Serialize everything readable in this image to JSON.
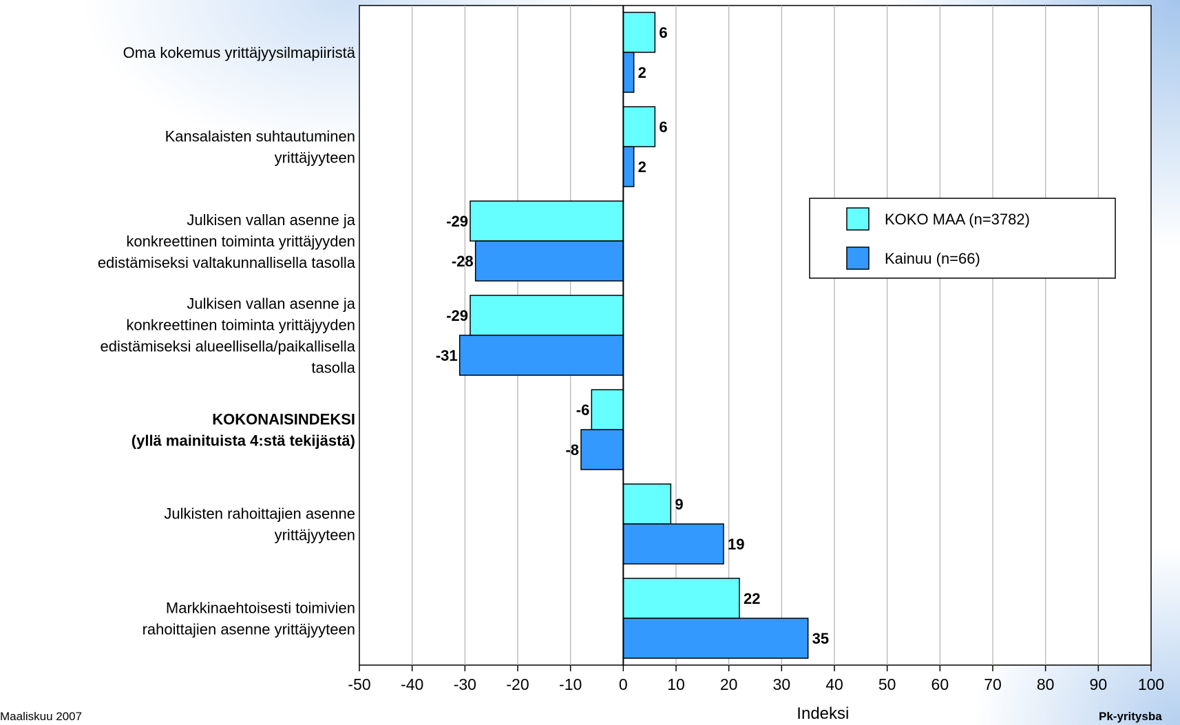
{
  "chart_data": {
    "type": "bar",
    "orientation": "horizontal",
    "categories": [
      [
        "Oma kokemus yrittäjyysilmapiiristä"
      ],
      [
        "Kansalaisten suhtautuminen",
        "yrittäjyyteen"
      ],
      [
        "Julkisen vallan asenne ja",
        "konkreettinen toiminta yrittäjyyden",
        "edistämiseksi valtakunnallisella tasolla"
      ],
      [
        "Julkisen vallan asenne ja",
        "konkreettinen toiminta yrittäjyyden",
        "edistämiseksi alueellisella/paikallisella",
        "tasolla"
      ],
      [
        "KOKONAISINDEKSI",
        "(yllä mainituista 4:stä tekijästä)"
      ],
      [
        "Julkisten rahoittajien asenne",
        "yrittäjyyteen"
      ],
      [
        "Markkinaehtoisesti toimivien",
        "rahoittajien asenne yrittäjyyteen"
      ]
    ],
    "bold_category_index": 4,
    "series": [
      {
        "name": "KOKO MAA (n=3782)",
        "color": "#66FFFF",
        "values": [
          6,
          6,
          -29,
          -29,
          -6,
          9,
          22
        ]
      },
      {
        "name": "Kainuu (n=66)",
        "color": "#3399FF",
        "values": [
          2,
          2,
          -28,
          -31,
          -8,
          19,
          35
        ]
      }
    ],
    "xlim": [
      -50,
      100
    ],
    "xticks": [
      -50,
      -40,
      -30,
      -20,
      -10,
      0,
      10,
      20,
      30,
      40,
      50,
      60,
      70,
      80,
      90,
      100
    ],
    "xlabel": "Indeksi",
    "grid": true,
    "legend_position": "right"
  },
  "footer": {
    "date": "Maaliskuu 2007",
    "source": "Pk-yritysba"
  }
}
